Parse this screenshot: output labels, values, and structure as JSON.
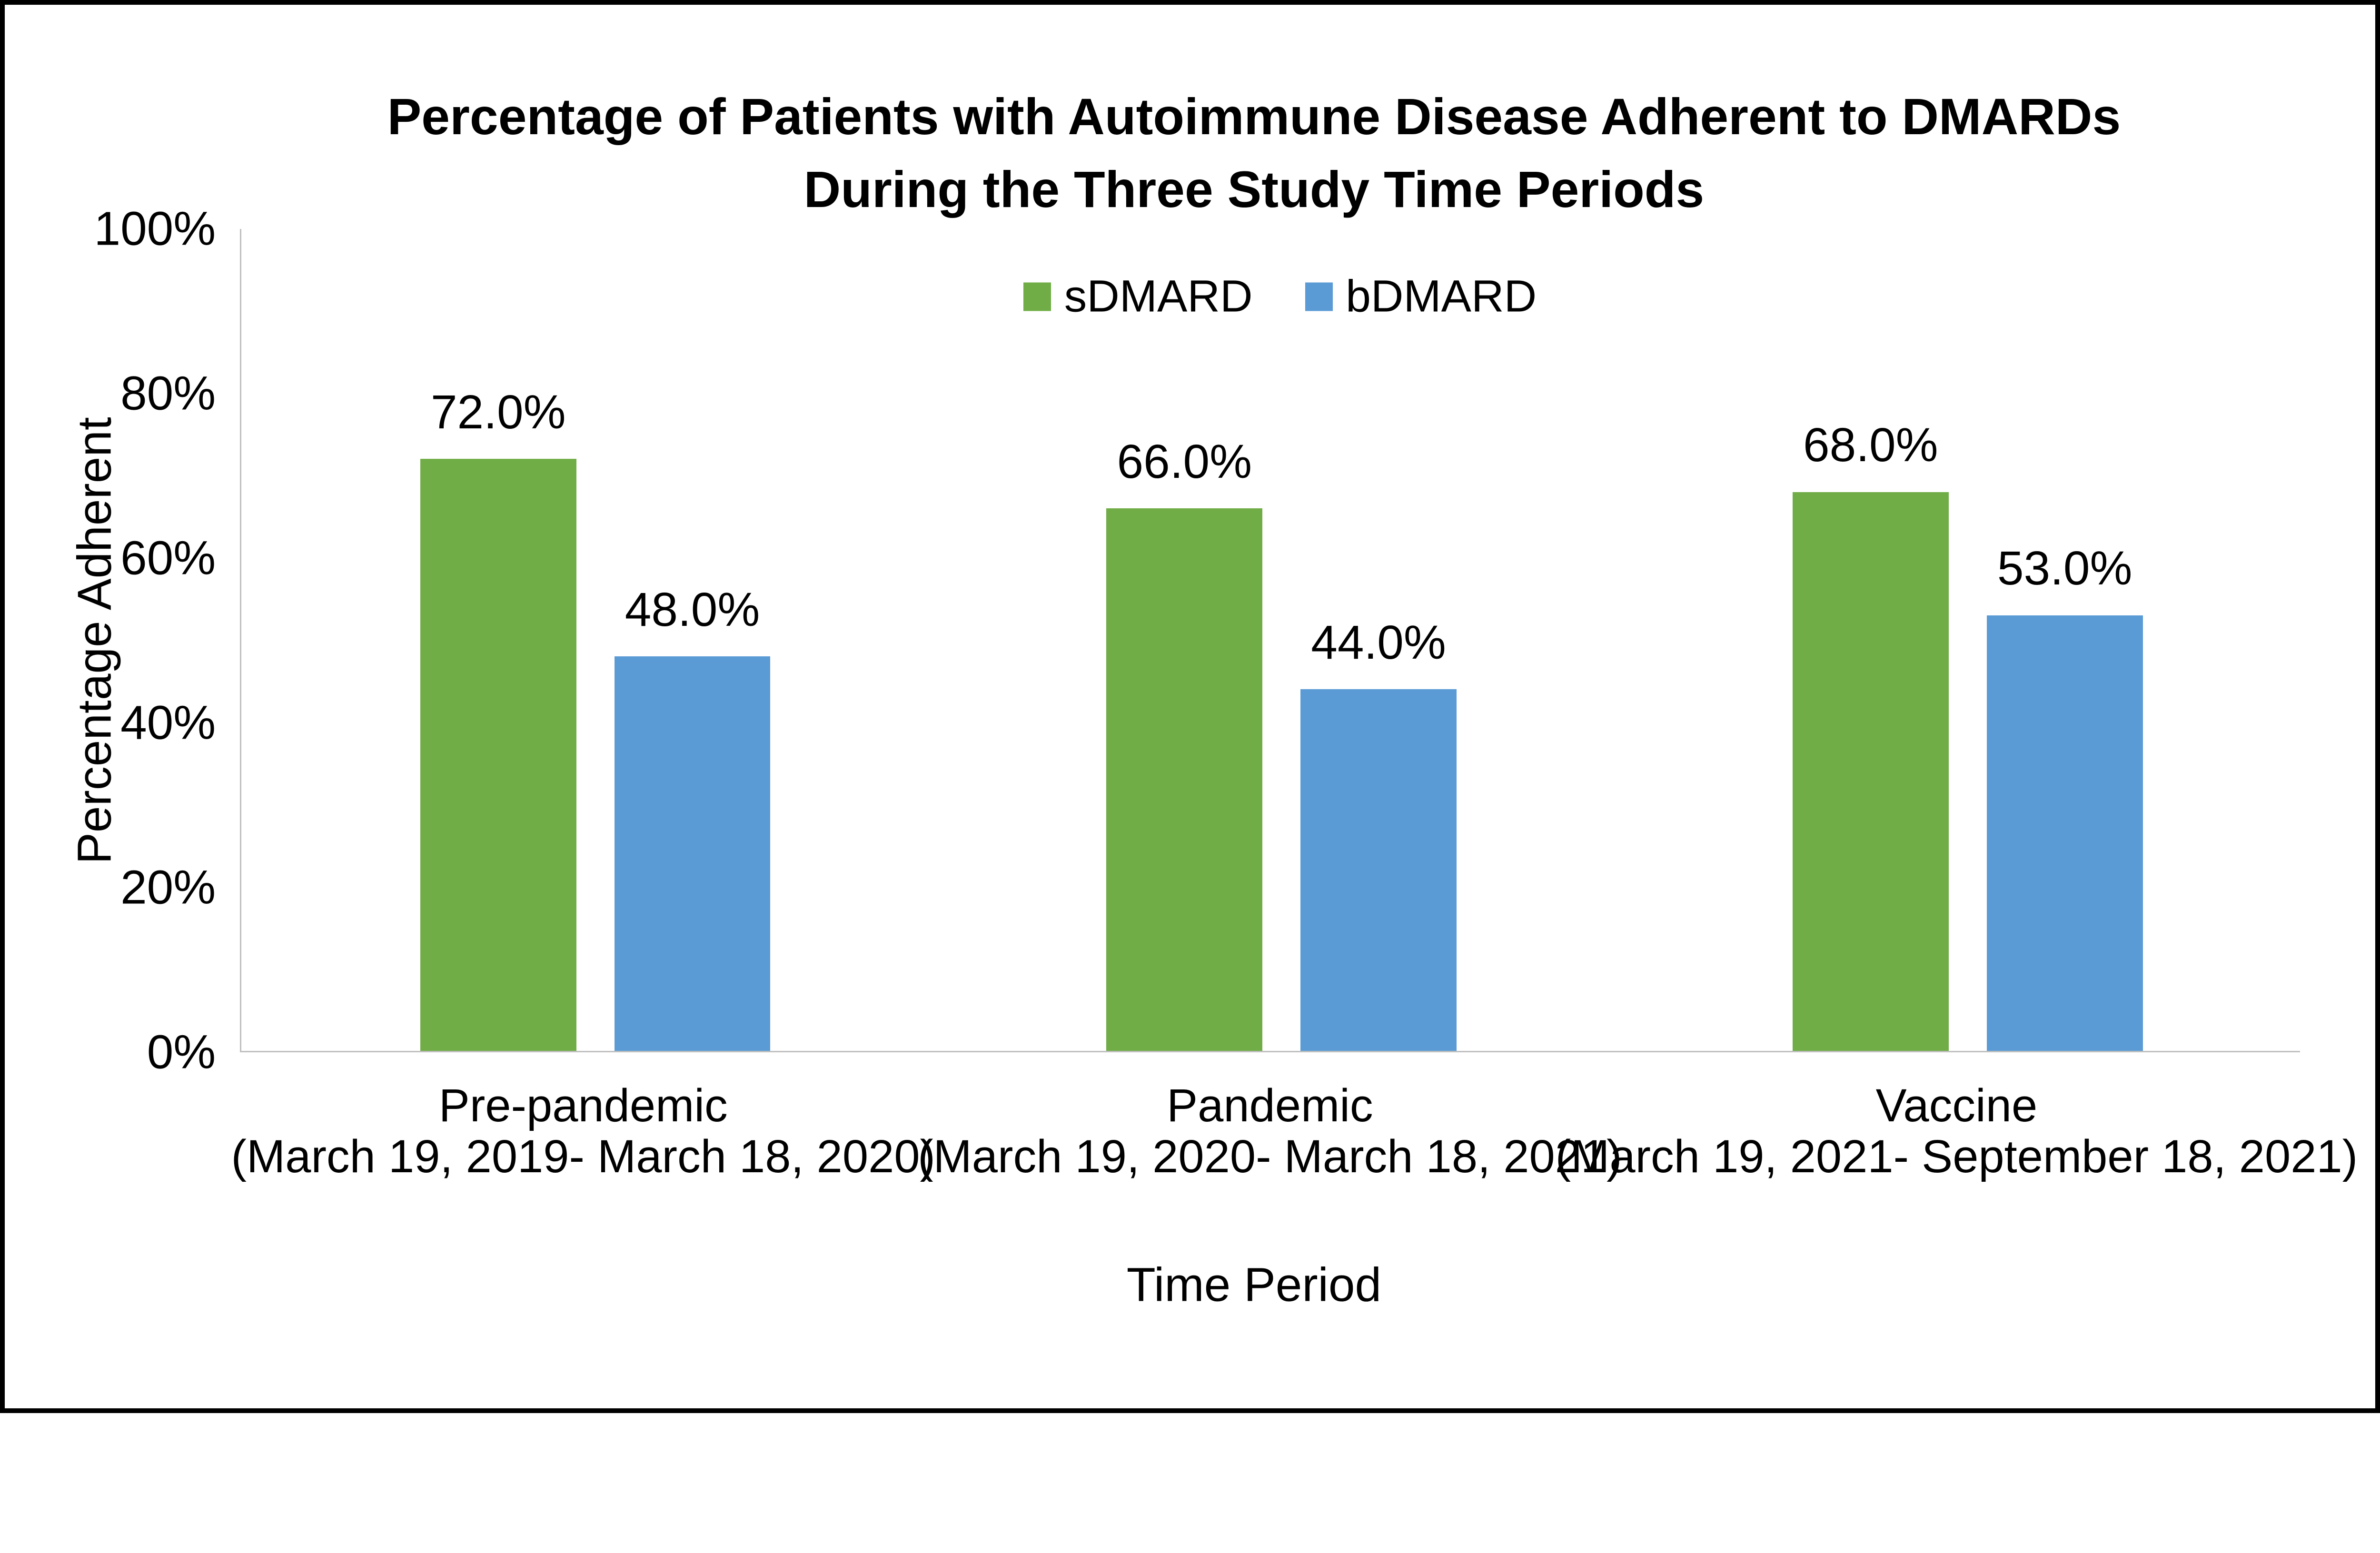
{
  "chart_data": {
    "type": "bar",
    "title_line1": "Percentage of Patients with Autoimmune Disease Adherent to DMARDs",
    "title_line2": "During the Three Study Time Periods",
    "ylabel": "Percentage Adherent",
    "xlabel": "Time Period",
    "ylim": [
      0,
      100
    ],
    "y_tick_step": 20,
    "y_ticks": [
      "100%",
      "80%",
      "60%",
      "40%",
      "20%",
      "0%"
    ],
    "grid": false,
    "legend_position": "top-inside-centered",
    "categories": [
      {
        "label": "Pre-pandemic",
        "sublabel": "(March 19, 2019- March 18, 2020)"
      },
      {
        "label": "Pandemic",
        "sublabel": "(March 19, 2020- March 18, 2021)"
      },
      {
        "label": "Vaccine",
        "sublabel": "(March 19, 2021- September 18, 2021)"
      }
    ],
    "series": [
      {
        "name": "sDMARD",
        "color": "#70AD47",
        "values": [
          72.0,
          66.0,
          68.0
        ],
        "data_labels": [
          "72.0%",
          "66.0%",
          "68.0%"
        ]
      },
      {
        "name": "bDMARD",
        "color": "#5B9BD5",
        "values": [
          48.0,
          44.0,
          53.0
        ],
        "data_labels": [
          "48.0%",
          "44.0%",
          "53.0%"
        ]
      }
    ]
  },
  "colors": {
    "axis_line": "#BFBFBF",
    "text": "#000000",
    "frame_border": "#000000",
    "background": "#FFFFFF"
  }
}
